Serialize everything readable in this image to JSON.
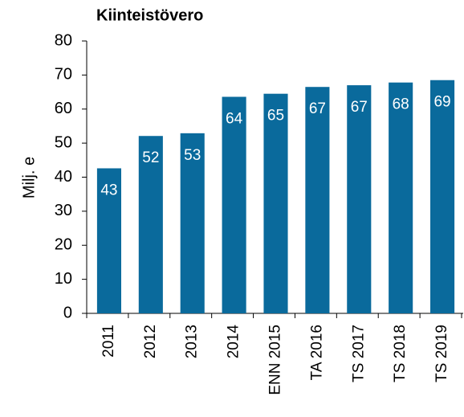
{
  "chart_data": {
    "type": "bar",
    "title": "Kiinteistövero",
    "y_label": "Milj. e",
    "categories": [
      "2011",
      "2012",
      "2013",
      "2014",
      "ENN 2015",
      "TA 2016",
      "TS 2017",
      "TS 2018",
      "TS 2019"
    ],
    "values": [
      42.6,
      52.1,
      52.9,
      63.6,
      64.5,
      66.5,
      67.0,
      67.8,
      68.5
    ],
    "value_labels": [
      "43",
      "52",
      "53",
      "64",
      "65",
      "67",
      "67",
      "68",
      "69"
    ],
    "color": "#0a6a9c",
    "ylim": [
      0,
      80
    ],
    "yticks": [
      0,
      10,
      20,
      30,
      40,
      50,
      60,
      70,
      80
    ],
    "grid": false
  }
}
